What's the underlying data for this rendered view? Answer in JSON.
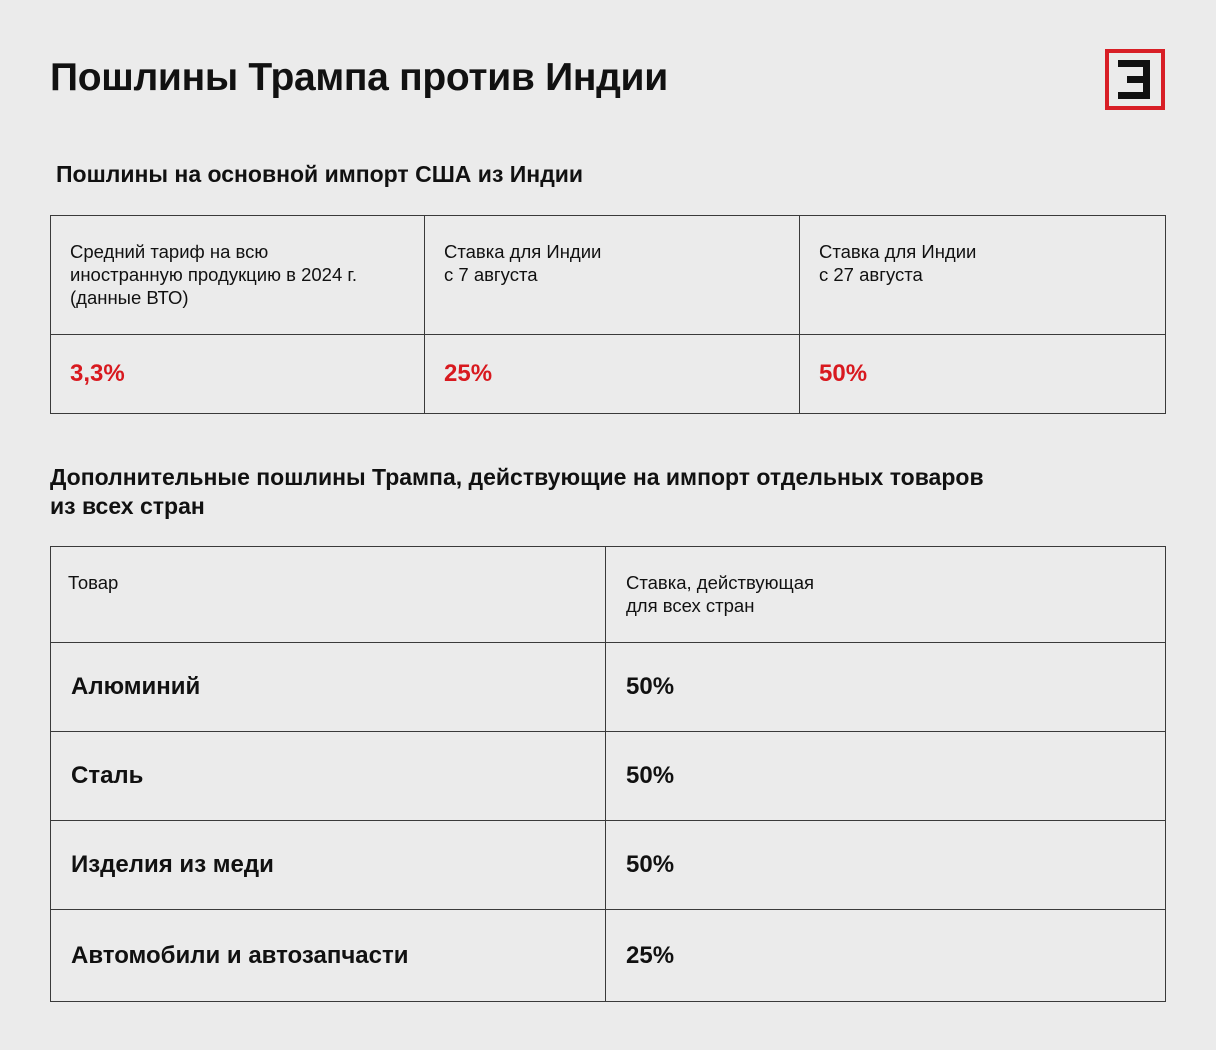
{
  "header": {
    "title": "Пошлины Трампа против Индии",
    "logo_color": "#d81f26"
  },
  "section1": {
    "title": "Пошлины на основной импорт США из Индии",
    "columns": [
      {
        "label": "Средний тариф на всю\nиностранную продукцию в 2024 г.\n(данные ВТО)",
        "value": "3,3%"
      },
      {
        "label": "Ставка для Индии\nс 7 августа",
        "value": "25%"
      },
      {
        "label": "Ставка для Индии\nс 27 августа",
        "value": "50%"
      }
    ],
    "value_color": "#d8191f"
  },
  "section2": {
    "title": "Дополнительные пошлины Трампа, действующие на импорт отдельных товаров\nиз всех стран",
    "headers": [
      "Товар",
      "Ставка, действующая\nдля всех стран"
    ],
    "rows": [
      {
        "product": "Алюминий",
        "rate": "50%"
      },
      {
        "product": "Сталь",
        "rate": "50%"
      },
      {
        "product": "Изделия из меди",
        "rate": "50%"
      },
      {
        "product": "Автомобили и автозапчасти",
        "rate": "25%"
      }
    ]
  }
}
